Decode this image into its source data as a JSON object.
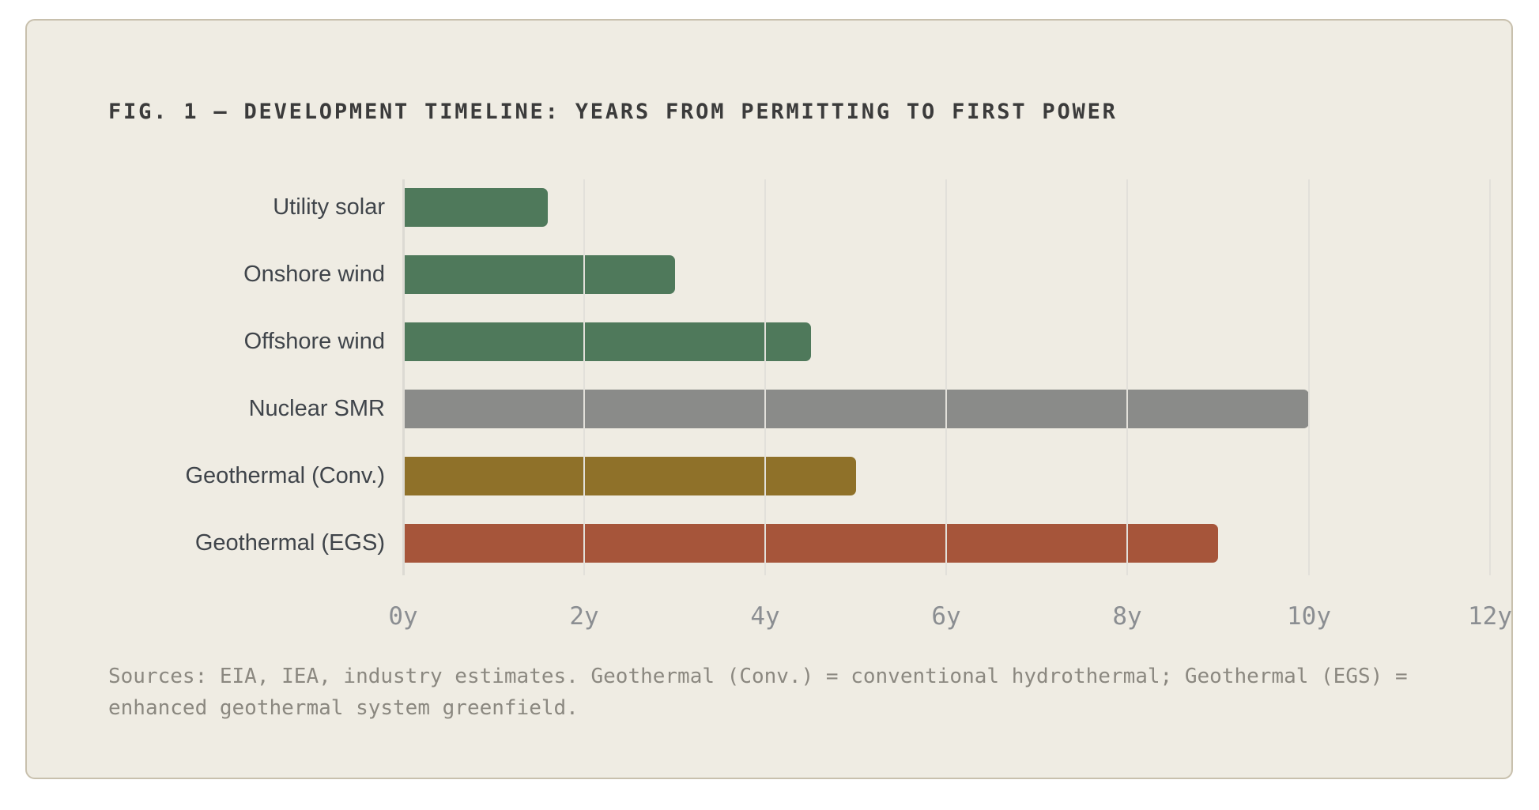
{
  "figure": {
    "title": "FIG. 1 — DEVELOPMENT TIMELINE: YEARS FROM PERMITTING TO FIRST POWER",
    "source_note": "Sources: EIA, IEA, industry estimates. Geothermal (Conv.) = conventional hydrothermal; Geothermal (EGS) = enhanced geothermal system greenfield."
  },
  "chart_data": {
    "type": "bar",
    "orientation": "horizontal",
    "title": "FIG. 1 — DEVELOPMENT TIMELINE: YEARS FROM PERMITTING TO FIRST POWER",
    "xlabel": "",
    "ylabel": "",
    "unit": "years",
    "xlim": [
      0,
      12
    ],
    "x_tick_values": [
      0,
      2,
      4,
      6,
      8,
      10,
      12
    ],
    "x_tick_labels": [
      "0y",
      "2y",
      "4y",
      "6y",
      "8y",
      "10y",
      "12y"
    ],
    "grid": "vertical gridlines on, drawn above bars",
    "legend": "none",
    "categories": [
      "Utility solar",
      "Onshore wind",
      "Offshore wind",
      "Nuclear SMR",
      "Geothermal (Conv.)",
      "Geothermal (EGS)"
    ],
    "values": [
      1.6,
      3.0,
      4.5,
      10.0,
      5.0,
      9.0
    ],
    "bar_colors": [
      "#4f795b",
      "#4f795b",
      "#4f795b",
      "#8a8b89",
      "#8f7129",
      "#a6553a"
    ],
    "annotation": "Sources: EIA, IEA, industry estimates. Geothermal (Conv.) = conventional hydrothermal; Geothermal (EGS) = enhanced geothermal system greenfield."
  },
  "colors": {
    "page_background": "#ffffff",
    "card_background": "#efece3",
    "card_border": "#c8c0ad",
    "gridline": "#e2e0da",
    "title_text": "#3b3b3b",
    "label_text": "#3f444a",
    "tick_text": "#8b8e92",
    "source_text": "#8b8880"
  }
}
